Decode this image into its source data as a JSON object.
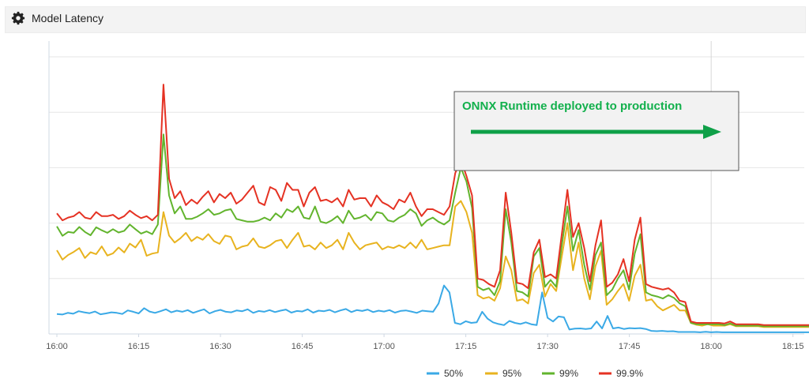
{
  "header": {
    "title": "Model Latency",
    "icon": "gear-icon"
  },
  "colors": {
    "p50": "#3aa9e6",
    "p95": "#e8b31f",
    "p99": "#62b42d",
    "p999": "#e53223",
    "annotation_text": "#12b04c",
    "annotation_arrow": "#0fa048"
  },
  "annotation": {
    "text": "ONNX Runtime deployed to production"
  },
  "chart_data": {
    "type": "line",
    "x_tick_labels": [
      "16:00",
      "16:15",
      "16:30",
      "16:45",
      "17:00",
      "17:15",
      "17:30",
      "17:45",
      "18:00",
      "18:15"
    ],
    "x_range_minutes": [
      0,
      142
    ],
    "y_range": [
      0,
      100
    ],
    "y_tick_labels_shown": false,
    "grid": true,
    "legend_position": "bottom",
    "series": [
      {
        "name": "50%",
        "color": "#3aa9e6",
        "values": [
          7.2,
          7.0,
          7.6,
          7.3,
          8.2,
          7.8,
          7.5,
          8.1,
          7.1,
          7.4,
          7.8,
          7.6,
          7.2,
          8.5,
          8.0,
          7.4,
          9.3,
          8.1,
          7.6,
          8.2,
          8.9,
          7.8,
          8.4,
          8.0,
          8.6,
          7.6,
          8.3,
          8.9,
          7.4,
          8.2,
          8.7,
          8.0,
          7.8,
          8.5,
          8.2,
          8.9,
          7.6,
          8.3,
          8.0,
          8.6,
          7.9,
          8.4,
          8.8,
          7.7,
          8.3,
          8.1,
          8.9,
          7.7,
          8.4,
          8.2,
          8.7,
          7.8,
          8.5,
          9.0,
          7.9,
          8.6,
          8.3,
          8.8,
          7.9,
          8.4,
          8.1,
          8.6,
          7.7,
          8.3,
          8.5,
          8.1,
          7.6,
          8.4,
          8.2,
          8.0,
          11.0,
          17.5,
          15.0,
          4.0,
          3.5,
          4.6,
          4.0,
          4.2,
          8.0,
          5.5,
          4.2,
          3.6,
          3.2,
          4.7,
          4.0,
          3.6,
          4.2,
          3.5,
          3.2,
          15.0,
          5.8,
          4.5,
          6.3,
          6.0,
          1.6,
          1.9,
          2.0,
          1.8,
          2.0,
          4.5,
          2.0,
          6.5,
          2.0,
          2.3,
          1.8,
          2.1,
          2.0,
          2.1,
          1.8,
          1.1,
          1.0,
          1.1,
          0.9,
          1.0,
          0.7,
          0.7,
          0.7,
          0.7,
          0.6,
          0.8,
          0.6,
          0.7,
          0.6,
          0.6,
          0.6,
          0.6,
          0.6,
          0.6,
          0.6,
          0.6,
          0.6,
          0.6,
          0.6,
          0.6,
          0.6,
          0.6,
          0.6,
          0.6,
          0.6,
          0.6,
          0.6,
          0.6,
          0.6
        ]
      },
      {
        "name": "95%",
        "color": "#e8b31f",
        "values": [
          30.2,
          26.8,
          28.5,
          29.6,
          31.0,
          27.4,
          29.5,
          28.8,
          31.6,
          28.3,
          29.1,
          31.2,
          29.4,
          32.6,
          31.2,
          34.0,
          28.2,
          29.0,
          29.4,
          44.0,
          35.5,
          33.0,
          34.5,
          36.5,
          33.5,
          35.0,
          34.0,
          36.0,
          33.5,
          32.5,
          35.5,
          35.0,
          30.5,
          31.5,
          32.0,
          34.5,
          31.5,
          31.0,
          32.0,
          33.5,
          34.0,
          31.0,
          34.0,
          36.5,
          31.5,
          32.0,
          30.5,
          33.0,
          31.0,
          32.0,
          34.0,
          30.5,
          36.5,
          33.0,
          30.5,
          32.0,
          32.5,
          33.0,
          30.5,
          31.5,
          31.0,
          32.0,
          31.0,
          33.0,
          31.0,
          34.0,
          30.5,
          31.0,
          31.5,
          32.0,
          32.0,
          46.0,
          48.0,
          44.0,
          36.5,
          14.0,
          12.8,
          13.3,
          12.0,
          16.5,
          28.0,
          23.0,
          12.0,
          12.5,
          11.0,
          22.0,
          25.0,
          13.5,
          18.0,
          15.5,
          28.0,
          40.0,
          23.0,
          33.0,
          20.0,
          12.5,
          24.5,
          30.0,
          10.5,
          12.5,
          15.5,
          18.0,
          12.0,
          21.0,
          25.0,
          12.0,
          12.5,
          10.0,
          8.5,
          9.5,
          10.5,
          8.5,
          8.5,
          4.0,
          3.3,
          3.0,
          3.5,
          3.0,
          3.0,
          3.0,
          3.5,
          2.8,
          2.8,
          2.8,
          2.8,
          2.8,
          2.5,
          2.5,
          2.5,
          2.5,
          2.5,
          2.5,
          2.5,
          2.5,
          2.5,
          2.5,
          2.5,
          2.5,
          2.5
        ]
      },
      {
        "name": "99%",
        "color": "#62b42d",
        "values": [
          38.8,
          35.4,
          36.8,
          36.5,
          38.6,
          36.8,
          35.6,
          38.5,
          37.4,
          36.5,
          37.8,
          36.6,
          37.2,
          39.5,
          37.8,
          36.2,
          37.0,
          36.0,
          39.5,
          72.0,
          50.0,
          43.5,
          46.0,
          41.5,
          41.5,
          42.3,
          43.5,
          45.0,
          43.0,
          43.5,
          44.6,
          45.0,
          41.5,
          41.0,
          40.5,
          40.5,
          41.0,
          42.0,
          41.0,
          43.5,
          42.0,
          45.0,
          44.0,
          46.0,
          42.0,
          41.5,
          46.0,
          40.5,
          40.0,
          41.0,
          42.5,
          40.0,
          44.5,
          41.5,
          42.0,
          43.0,
          41.0,
          44.0,
          43.5,
          41.0,
          40.5,
          42.0,
          43.0,
          45.0,
          43.5,
          39.0,
          41.0,
          42.0,
          40.5,
          39.5,
          41.0,
          51.0,
          60.0,
          55.0,
          45.5,
          17.0,
          15.8,
          16.5,
          14.0,
          19.0,
          45.0,
          33.0,
          15.5,
          15.0,
          13.5,
          28.0,
          31.0,
          17.0,
          19.5,
          17.0,
          32.0,
          46.0,
          30.0,
          37.5,
          25.0,
          16.0,
          28.5,
          33.0,
          14.0,
          16.0,
          20.0,
          23.0,
          16.0,
          29.0,
          36.0,
          15.0,
          14.0,
          13.5,
          12.8,
          14.0,
          13.0,
          11.0,
          10.0,
          4.0,
          3.5,
          3.5,
          3.5,
          3.5,
          3.5,
          3.2,
          3.8,
          3.0,
          3.0,
          3.0,
          3.0,
          3.0,
          2.8,
          2.8,
          2.8,
          2.8,
          2.8,
          2.8,
          2.8,
          2.8,
          2.8,
          2.8,
          2.8,
          2.8,
          2.8
        ]
      },
      {
        "name": "99.9%",
        "color": "#e53223",
        "values": [
          43.5,
          41.0,
          42.0,
          42.5,
          44.0,
          42.0,
          41.5,
          44.0,
          42.5,
          42.5,
          43.0,
          41.5,
          42.5,
          44.5,
          43.0,
          41.8,
          42.5,
          41.0,
          43.0,
          90.0,
          56.0,
          49.0,
          51.5,
          46.5,
          48.5,
          47.0,
          49.5,
          51.5,
          47.5,
          50.5,
          49.0,
          51.0,
          47.0,
          48.5,
          51.0,
          53.5,
          47.5,
          46.5,
          53.0,
          52.0,
          48.0,
          54.5,
          52.0,
          52.0,
          46.0,
          51.0,
          53.0,
          48.0,
          48.5,
          47.5,
          49.0,
          46.0,
          52.0,
          48.5,
          49.0,
          49.0,
          46.0,
          50.0,
          47.5,
          46.5,
          45.0,
          48.5,
          47.5,
          51.0,
          46.0,
          42.5,
          45.0,
          45.0,
          44.0,
          43.0,
          46.0,
          58.0,
          63.0,
          57.0,
          50.0,
          20.0,
          19.5,
          18.0,
          17.0,
          23.0,
          51.0,
          36.5,
          18.5,
          18.0,
          16.5,
          29.5,
          34.0,
          20.5,
          21.5,
          20.0,
          36.0,
          52.0,
          35.0,
          40.0,
          31.0,
          19.0,
          32.0,
          41.0,
          17.0,
          18.5,
          21.5,
          27.0,
          19.0,
          34.0,
          42.0,
          18.0,
          17.0,
          16.5,
          16.0,
          16.5,
          15.0,
          12.0,
          11.5,
          4.5,
          4.0,
          4.0,
          4.0,
          4.0,
          4.0,
          3.8,
          4.5,
          3.5,
          3.5,
          3.5,
          3.5,
          3.5,
          3.2,
          3.2,
          3.2,
          3.2,
          3.2,
          3.2,
          3.2,
          3.2,
          3.2,
          3.2,
          3.2,
          3.2,
          3.2
        ]
      }
    ]
  }
}
